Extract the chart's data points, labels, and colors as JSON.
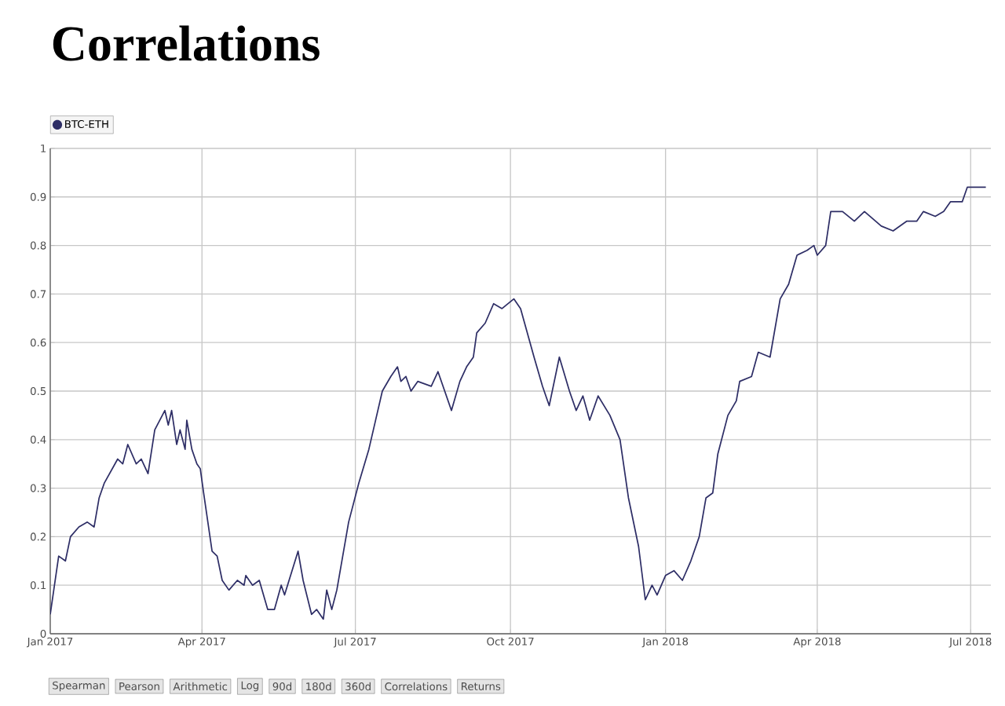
{
  "chart_data": {
    "type": "line",
    "title": "Correlations",
    "x": [
      "2017-01-01",
      "2017-01-06",
      "2017-01-10",
      "2017-01-13",
      "2017-01-18",
      "2017-01-23",
      "2017-01-27",
      "2017-01-30",
      "2017-02-02",
      "2017-02-10",
      "2017-02-13",
      "2017-02-16",
      "2017-02-21",
      "2017-02-24",
      "2017-02-28",
      "2017-03-04",
      "2017-03-10",
      "2017-03-12",
      "2017-03-14",
      "2017-03-17",
      "2017-03-19",
      "2017-03-22",
      "2017-03-23",
      "2017-03-26",
      "2017-03-29",
      "2017-03-31",
      "2017-04-02",
      "2017-04-07",
      "2017-04-10",
      "2017-04-13",
      "2017-04-17",
      "2017-04-22",
      "2017-04-26",
      "2017-04-27",
      "2017-05-01",
      "2017-05-05",
      "2017-05-10",
      "2017-05-14",
      "2017-05-18",
      "2017-05-20",
      "2017-05-28",
      "2017-05-31",
      "2017-06-05",
      "2017-06-08",
      "2017-06-12",
      "2017-06-14",
      "2017-06-17",
      "2017-06-20",
      "2017-06-27",
      "2017-07-03",
      "2017-07-09",
      "2017-07-13",
      "2017-07-17",
      "2017-07-22",
      "2017-07-26",
      "2017-07-28",
      "2017-07-31",
      "2017-08-03",
      "2017-08-07",
      "2017-08-15",
      "2017-08-19",
      "2017-08-27",
      "2017-09-01",
      "2017-09-05",
      "2017-09-09",
      "2017-09-11",
      "2017-09-16",
      "2017-09-21",
      "2017-09-26",
      "2017-10-03",
      "2017-10-07",
      "2017-10-15",
      "2017-10-20",
      "2017-10-24",
      "2017-10-30",
      "2017-11-05",
      "2017-11-09",
      "2017-11-13",
      "2017-11-17",
      "2017-11-22",
      "2017-11-29",
      "2017-12-05",
      "2017-12-10",
      "2017-12-16",
      "2017-12-20",
      "2017-12-24",
      "2017-12-27",
      "2018-01-01",
      "2018-01-06",
      "2018-01-11",
      "2018-01-16",
      "2018-01-21",
      "2018-01-25",
      "2018-01-29",
      "2018-02-01",
      "2018-02-07",
      "2018-02-12",
      "2018-02-14",
      "2018-02-21",
      "2018-02-25",
      "2018-03-04",
      "2018-03-10",
      "2018-03-15",
      "2018-03-20",
      "2018-03-26",
      "2018-03-30",
      "2018-04-01",
      "2018-04-06",
      "2018-04-09",
      "2018-04-16",
      "2018-04-23",
      "2018-04-29",
      "2018-05-09",
      "2018-05-16",
      "2018-05-20",
      "2018-05-24",
      "2018-05-30",
      "2018-06-03",
      "2018-06-10",
      "2018-06-15",
      "2018-06-19",
      "2018-06-26",
      "2018-06-29",
      "2018-07-05",
      "2018-07-10"
    ],
    "series": [
      {
        "name": "BTC-ETH",
        "color": "#2e2e66",
        "values": [
          0.04,
          0.16,
          0.15,
          0.2,
          0.22,
          0.23,
          0.22,
          0.28,
          0.31,
          0.36,
          0.35,
          0.39,
          0.35,
          0.36,
          0.33,
          0.42,
          0.46,
          0.43,
          0.46,
          0.39,
          0.42,
          0.38,
          0.44,
          0.38,
          0.35,
          0.34,
          0.29,
          0.17,
          0.16,
          0.11,
          0.09,
          0.11,
          0.1,
          0.12,
          0.1,
          0.11,
          0.05,
          0.05,
          0.1,
          0.08,
          0.17,
          0.11,
          0.04,
          0.05,
          0.03,
          0.09,
          0.05,
          0.09,
          0.23,
          0.31,
          0.38,
          0.44,
          0.5,
          0.53,
          0.55,
          0.52,
          0.53,
          0.5,
          0.52,
          0.51,
          0.54,
          0.46,
          0.52,
          0.55,
          0.57,
          0.62,
          0.64,
          0.68,
          0.67,
          0.69,
          0.67,
          0.57,
          0.51,
          0.47,
          0.57,
          0.5,
          0.46,
          0.49,
          0.44,
          0.49,
          0.45,
          0.4,
          0.28,
          0.18,
          0.07,
          0.1,
          0.08,
          0.12,
          0.13,
          0.11,
          0.15,
          0.2,
          0.28,
          0.29,
          0.37,
          0.45,
          0.48,
          0.52,
          0.53,
          0.58,
          0.57,
          0.69,
          0.72,
          0.78,
          0.79,
          0.8,
          0.78,
          0.8,
          0.87,
          0.87,
          0.85,
          0.87,
          0.84,
          0.83,
          0.84,
          0.85,
          0.85,
          0.87,
          0.86,
          0.87,
          0.89,
          0.89,
          0.92,
          0.92,
          0.92
        ]
      }
    ],
    "xlim": [
      "2017-01-01",
      "2018-07-13"
    ],
    "xticks": [
      {
        "value": "2017-01-01",
        "label": "Jan 2017"
      },
      {
        "value": "2017-04-01",
        "label": "Apr 2017"
      },
      {
        "value": "2017-07-01",
        "label": "Jul 2017"
      },
      {
        "value": "2017-10-01",
        "label": "Oct 2017"
      },
      {
        "value": "2018-01-01",
        "label": "Jan 2018"
      },
      {
        "value": "2018-04-01",
        "label": "Apr 2018"
      },
      {
        "value": "2018-07-01",
        "label": "Jul 2018"
      }
    ],
    "ylim": [
      0,
      1
    ],
    "yticks": [
      0,
      0.1,
      0.2,
      0.3,
      0.4,
      0.5,
      0.6,
      0.7,
      0.8,
      0.9,
      1
    ],
    "grid": true,
    "legend": "top left",
    "marker": "none",
    "line_style": "solid",
    "annotations": [
      "Spearman",
      "Pearson",
      "Arithmetic",
      "Log",
      "90d",
      "180d",
      "360d",
      "Correlations",
      "Returns"
    ]
  }
}
